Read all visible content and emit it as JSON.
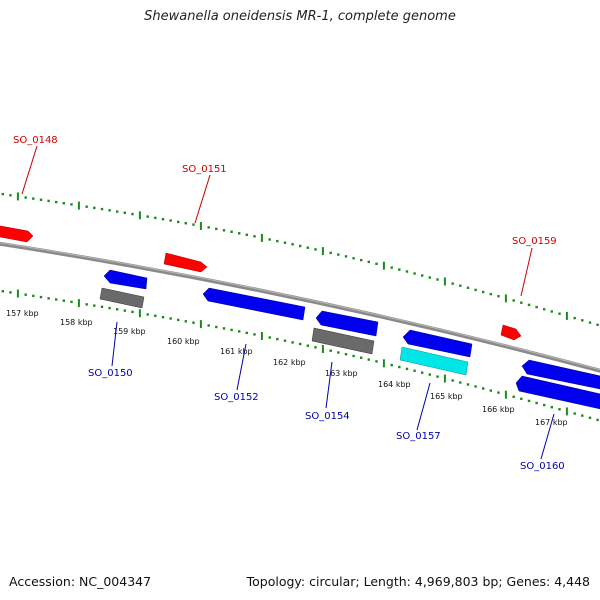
{
  "title": "Shewanella oneidensis MR-1, complete genome",
  "accession": "Accession: NC_004347",
  "summary": "Topology: circular; Length: 4,969,803 bp; Genes: 4,448",
  "colors": {
    "forward_gene": "#ff0000",
    "reverse_gene": "#0000ff",
    "gray_feature": "#666666",
    "cyan_feature": "#00e5e5",
    "backbone": "#8a8a8a",
    "ticks": "#1a8a1a",
    "forward_label": "#cc0000",
    "reverse_label": "#0000aa"
  },
  "kbp_labels": [
    "157 kbp",
    "158 kbp",
    "159 kbp",
    "160 kbp",
    "161 kbp",
    "162 kbp",
    "163 kbp",
    "164 kbp",
    "165 kbp",
    "166 kbp",
    "167 kbp"
  ],
  "forward_genes": [
    "SO_0148",
    "SO_0151",
    "SO_0159"
  ],
  "reverse_genes": [
    "SO_0150",
    "SO_0152",
    "SO_0154",
    "SO_0157",
    "SO_0160"
  ]
}
